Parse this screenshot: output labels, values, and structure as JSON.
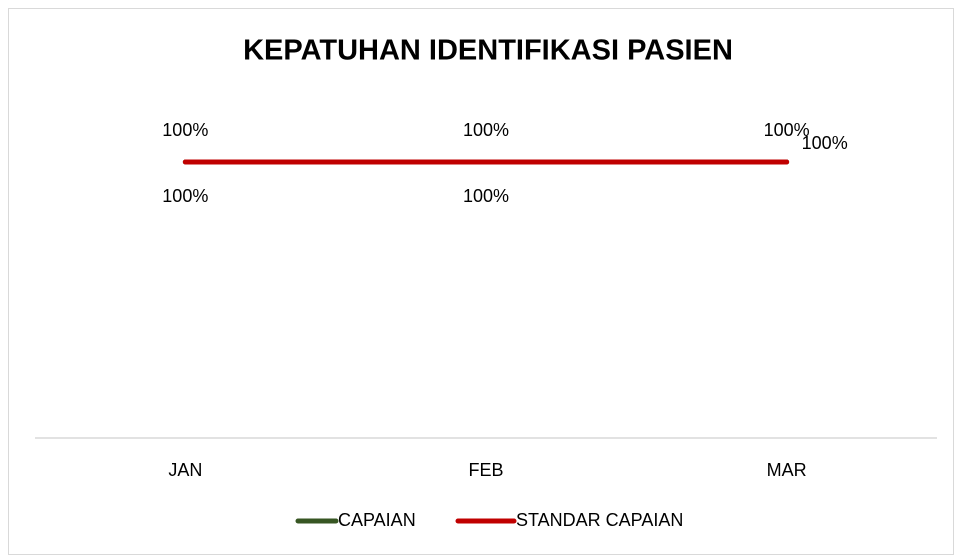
{
  "chart_data": {
    "type": "line",
    "title": "KEPATUHAN IDENTIFIKASI PASIEN",
    "categories": [
      "JAN",
      "FEB",
      "MAR"
    ],
    "series": [
      {
        "name": "CAPAIAN",
        "color": "#375623",
        "values": [
          100,
          100,
          100
        ],
        "value_labels": [
          "100%",
          "100%",
          "100%"
        ]
      },
      {
        "name": "STANDAR CAPAIAN",
        "color": "#c00000",
        "values": [
          100,
          100,
          100
        ],
        "value_labels": [
          "100%",
          "100%",
          "100%"
        ]
      }
    ],
    "ylim": [
      0,
      120
    ],
    "grid": false,
    "legend": "bottom"
  }
}
